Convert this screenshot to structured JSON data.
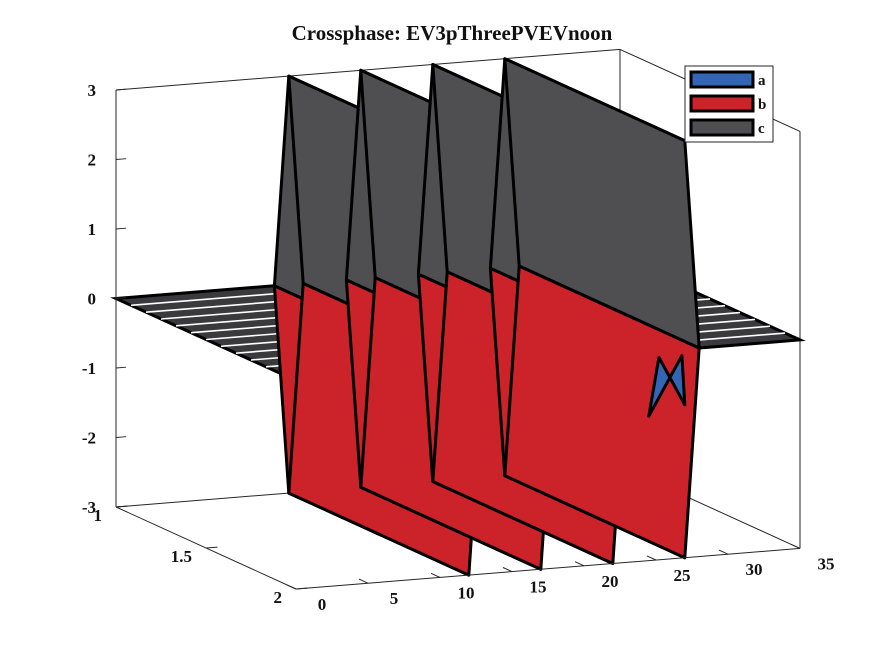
{
  "chart_data": {
    "type": "surface3d",
    "title": "Crossphase: EV3pThreePVEVnoon",
    "xlabel": "",
    "ylabel": "",
    "zlabel": "",
    "x_ticks": [
      "0",
      "5",
      "10",
      "15",
      "20",
      "25",
      "30",
      "35"
    ],
    "y_ticks": [
      "1",
      "1.5",
      "2"
    ],
    "z_ticks": [
      "-3",
      "-2",
      "-1",
      "0",
      "1",
      "2",
      "3"
    ],
    "xlim": [
      0,
      35
    ],
    "ylim": [
      1,
      2
    ],
    "zlim": [
      -3,
      3
    ],
    "spikes_at_x": [
      12,
      17,
      22,
      27
    ],
    "series": [
      {
        "name": "a",
        "color": "#3465b4",
        "values": [
          -1.2,
          -1.2,
          -1.2,
          -1.2
        ]
      },
      {
        "name": "b",
        "color": "#cc2229",
        "values": [
          -3,
          -3,
          -3,
          -3
        ]
      },
      {
        "name": "c",
        "color": "#4f4f51",
        "values": [
          3,
          3,
          3,
          3
        ]
      }
    ],
    "baseline_value": 0,
    "legend_position": "top-right",
    "grid": false
  }
}
